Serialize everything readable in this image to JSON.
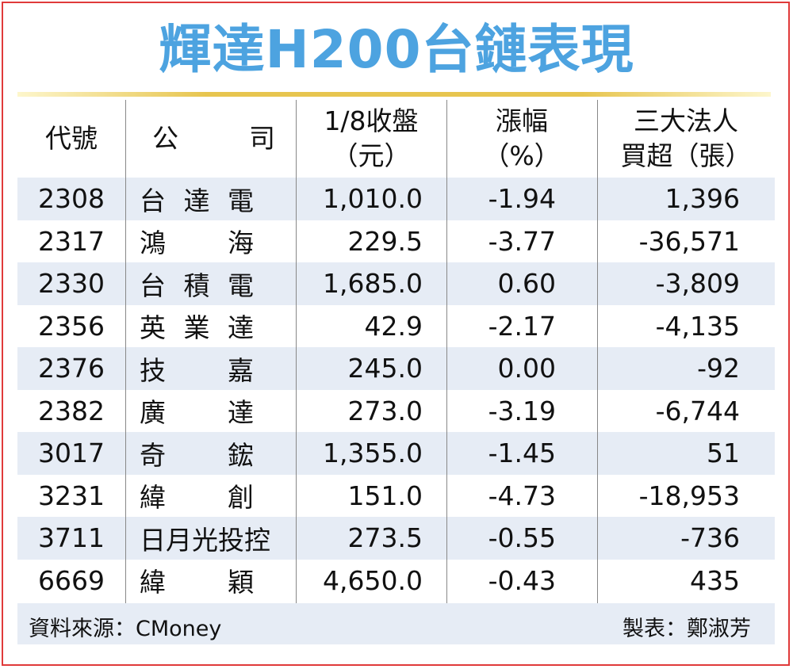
{
  "title": "輝達H200台鏈表現",
  "headers": {
    "code": "代號",
    "company_a": "公",
    "company_b": "司",
    "close_l1": "1/8收盤",
    "close_l2": "（元）",
    "change_l1": "漲幅",
    "change_l2": "（%）",
    "inst_l1": "三大法人",
    "inst_l2": "買超（張）"
  },
  "rows": [
    {
      "code": "2308",
      "name": [
        "台",
        "達",
        "電"
      ],
      "close": "1,010.0",
      "change": "-1.94",
      "inst": "1,396"
    },
    {
      "code": "2317",
      "name": [
        "鴻",
        "海"
      ],
      "close": "229.5",
      "change": "-3.77",
      "inst": "-36,571"
    },
    {
      "code": "2330",
      "name": [
        "台",
        "積",
        "電"
      ],
      "close": "1,685.0",
      "change": "0.60",
      "inst": "-3,809"
    },
    {
      "code": "2356",
      "name": [
        "英",
        "業",
        "達"
      ],
      "close": "42.9",
      "change": "-2.17",
      "inst": "-4,135"
    },
    {
      "code": "2376",
      "name": [
        "技",
        "嘉"
      ],
      "close": "245.0",
      "change": "0.00",
      "inst": "-92"
    },
    {
      "code": "2382",
      "name": [
        "廣",
        "達"
      ],
      "close": "273.0",
      "change": "-3.19",
      "inst": "-6,744"
    },
    {
      "code": "3017",
      "name": [
        "奇",
        "鋐"
      ],
      "close": "1,355.0",
      "change": "-1.45",
      "inst": "51"
    },
    {
      "code": "3231",
      "name": [
        "緯",
        "創"
      ],
      "close": "151.0",
      "change": "-4.73",
      "inst": "-18,953"
    },
    {
      "code": "3711",
      "name": [
        "日月光投控"
      ],
      "close": "273.5",
      "change": "-0.55",
      "inst": "-736"
    },
    {
      "code": "6669",
      "name": [
        "緯",
        "穎"
      ],
      "close": "4,650.0",
      "change": "-0.43",
      "inst": "435"
    }
  ],
  "footer": {
    "source": "資料來源：CMoney",
    "credit": "製表：鄭淑芳"
  },
  "colors": {
    "title": "#4da3e0",
    "frame": "#e03a3a",
    "shade": "#e6ecf5",
    "gold": "#e7c54f"
  }
}
